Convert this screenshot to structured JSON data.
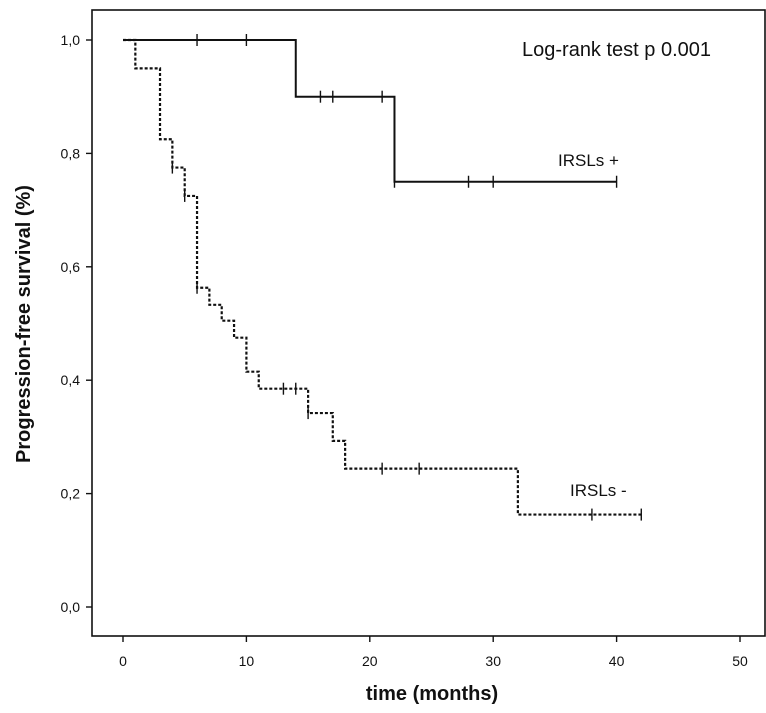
{
  "chart_data": {
    "type": "line",
    "subtype": "kaplan-meier step",
    "xlabel": "time (months)",
    "ylabel": "Progression-free survival (%)",
    "xlim": [
      -6,
      52
    ],
    "ylim": [
      -0.05,
      1.06
    ],
    "x_ticks": [
      0,
      10,
      20,
      30,
      40,
      50
    ],
    "x_tick_labels": [
      "0",
      "10",
      "20",
      "30",
      "40",
      "50"
    ],
    "y_ticks": [
      0.0,
      0.2,
      0.4,
      0.6,
      0.8,
      1.0
    ],
    "y_tick_labels": [
      "0,0",
      "0,2",
      "0,4",
      "0,6",
      "0,8",
      "1,0"
    ],
    "grid": false,
    "annotation": "Log-rank test p 0.001",
    "series": [
      {
        "name": "IRSLs +",
        "line_style": "solid",
        "color": "#111111",
        "steps": [
          [
            0,
            1.0
          ],
          [
            14,
            0.9
          ],
          [
            22,
            0.75
          ],
          [
            40,
            0.75
          ]
        ],
        "censored": [
          [
            6,
            1.0
          ],
          [
            10,
            1.0
          ],
          [
            16,
            0.9
          ],
          [
            17,
            0.9
          ],
          [
            21,
            0.9
          ],
          [
            22,
            0.75
          ],
          [
            28,
            0.75
          ],
          [
            30,
            0.75
          ],
          [
            40,
            0.75
          ]
        ]
      },
      {
        "name": "IRSLs -",
        "line_style": "dotted",
        "color": "#111111",
        "steps": [
          [
            0,
            1.0
          ],
          [
            1,
            0.95
          ],
          [
            3,
            0.825
          ],
          [
            4,
            0.775
          ],
          [
            5,
            0.725
          ],
          [
            6,
            0.563
          ],
          [
            7,
            0.533
          ],
          [
            8,
            0.505
          ],
          [
            9,
            0.475
          ],
          [
            10,
            0.415
          ],
          [
            11,
            0.385
          ],
          [
            15,
            0.342
          ],
          [
            17,
            0.293
          ],
          [
            18,
            0.244
          ],
          [
            32,
            0.163
          ],
          [
            42,
            0.163
          ]
        ],
        "censored": [
          [
            4,
            0.775
          ],
          [
            5,
            0.725
          ],
          [
            6,
            0.563
          ],
          [
            13,
            0.385
          ],
          [
            14,
            0.385
          ],
          [
            15,
            0.342
          ],
          [
            21,
            0.244
          ],
          [
            24,
            0.244
          ],
          [
            38,
            0.163
          ],
          [
            42,
            0.163
          ]
        ]
      }
    ]
  }
}
